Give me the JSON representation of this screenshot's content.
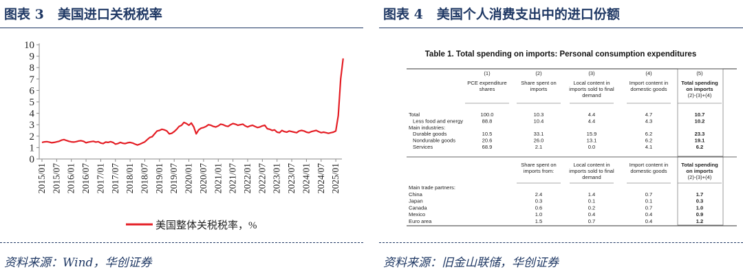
{
  "left": {
    "figure_title_num": "图表 3",
    "figure_title_text": "美国进口关税税率",
    "source": "资料来源：Wind，华创证券"
  },
  "right": {
    "figure_title_num": "图表 4",
    "figure_title_text": "美国个人消费支出中的进口份额",
    "source": "资料来源：旧金山联储，华创证券"
  },
  "chart_data": [
    {
      "type": "line",
      "title": "",
      "xlabel": "",
      "ylabel": "",
      "ylim": [
        0,
        10
      ],
      "yticks": [
        "0",
        "1",
        "2",
        "3",
        "4",
        "5",
        "6",
        "7",
        "8",
        "9",
        "10"
      ],
      "xticks": [
        "2015/01",
        "2015/07",
        "2016/01",
        "2016/07",
        "2017/01",
        "2017/07",
        "2018/01",
        "2018/07",
        "2019/01",
        "2019/07",
        "2020/01",
        "2020/07",
        "2021/01",
        "2021/07",
        "2022/01",
        "2022/07",
        "2023/01",
        "2023/07",
        "2024/01",
        "2024/07",
        "2025/01"
      ],
      "grid": false,
      "legend_position": "bottom",
      "color": "#e41e25",
      "series": [
        {
          "name": "美国整体关税税率，%",
          "start": "2015/01",
          "frequency": "monthly",
          "values": [
            1.45,
            1.5,
            1.52,
            1.48,
            1.42,
            1.45,
            1.5,
            1.55,
            1.65,
            1.7,
            1.62,
            1.55,
            1.5,
            1.48,
            1.52,
            1.58,
            1.6,
            1.55,
            1.42,
            1.48,
            1.52,
            1.55,
            1.48,
            1.52,
            1.4,
            1.35,
            1.48,
            1.45,
            1.52,
            1.45,
            1.3,
            1.35,
            1.45,
            1.38,
            1.35,
            1.42,
            1.45,
            1.4,
            1.3,
            1.22,
            1.3,
            1.4,
            1.5,
            1.7,
            1.88,
            1.95,
            2.2,
            2.45,
            2.5,
            2.6,
            2.55,
            2.45,
            2.2,
            2.25,
            2.4,
            2.6,
            2.85,
            2.95,
            3.2,
            3.1,
            2.95,
            3.15,
            2.8,
            2.2,
            2.55,
            2.7,
            2.75,
            2.85,
            3.0,
            2.95,
            2.85,
            2.8,
            2.9,
            3.05,
            3.0,
            2.9,
            2.85,
            3.0,
            3.1,
            3.05,
            2.95,
            3.0,
            3.05,
            2.9,
            2.8,
            2.9,
            2.95,
            2.85,
            2.75,
            2.8,
            2.9,
            2.95,
            2.65,
            2.6,
            2.5,
            2.55,
            2.35,
            2.3,
            2.5,
            2.4,
            2.35,
            2.45,
            2.4,
            2.35,
            2.3,
            2.45,
            2.5,
            2.45,
            2.35,
            2.3,
            2.4,
            2.45,
            2.5,
            2.4,
            2.3,
            2.35,
            2.3,
            2.25,
            2.3,
            2.35,
            2.45,
            3.8,
            7.0,
            8.8
          ]
        }
      ]
    },
    {
      "type": "table",
      "title": "Table 1. Total spending on imports: Personal consumption expenditures",
      "col_numbers": [
        "(1)",
        "(2)",
        "(3)",
        "(4)",
        "(5)"
      ],
      "header1": [
        "PCE expenditure|shares",
        "Share spent on|imports",
        "Local content in|imports sold to final|demand",
        "Import content in|domestic goods",
        "Total spending|on imports|(2)-(3)+(4)"
      ],
      "rows1": [
        {
          "label": "Total",
          "indent": false,
          "values": [
            "100.0",
            "10.3",
            "4.4",
            "4.7",
            "10.7"
          ]
        },
        {
          "label": "Less food and energy",
          "indent": true,
          "values": [
            "88.8",
            "10.4",
            "4.4",
            "4.3",
            "10.2"
          ]
        },
        {
          "label": "Main industries:",
          "indent": false,
          "values": []
        },
        {
          "label": "Durable goods",
          "indent": true,
          "values": [
            "10.5",
            "33.1",
            "15.9",
            "6.2",
            "23.3"
          ]
        },
        {
          "label": "Nondurable goods",
          "indent": true,
          "values": [
            "20.6",
            "26.0",
            "13.1",
            "6.2",
            "19.1"
          ]
        },
        {
          "label": "Services",
          "indent": true,
          "values": [
            "68.9",
            "2.1",
            "0.0",
            "4.1",
            "6.2"
          ]
        }
      ],
      "header2": [
        "",
        "Share spent on|imports from:",
        "Local content in|imports sold to final|demand",
        "Import content in|domestic goods",
        "Total spending|on imports|(2)-(3)+(4)"
      ],
      "rows2": [
        {
          "label": "Main trade partners:",
          "indent": false,
          "values": []
        },
        {
          "label": "China",
          "indent": false,
          "values": [
            "",
            "2.4",
            "1.4",
            "0.7",
            "1.7"
          ]
        },
        {
          "label": "Japan",
          "indent": false,
          "values": [
            "",
            "0.3",
            "0.1",
            "0.1",
            "0.3"
          ]
        },
        {
          "label": "Canada",
          "indent": false,
          "values": [
            "",
            "0.6",
            "0.2",
            "0.7",
            "1.0"
          ]
        },
        {
          "label": "Mexico",
          "indent": false,
          "values": [
            "",
            "1.0",
            "0.4",
            "0.4",
            "0.9"
          ]
        },
        {
          "label": "Euro area",
          "indent": false,
          "values": [
            "",
            "1.5",
            "0.7",
            "0.4",
            "1.2"
          ]
        }
      ]
    }
  ]
}
